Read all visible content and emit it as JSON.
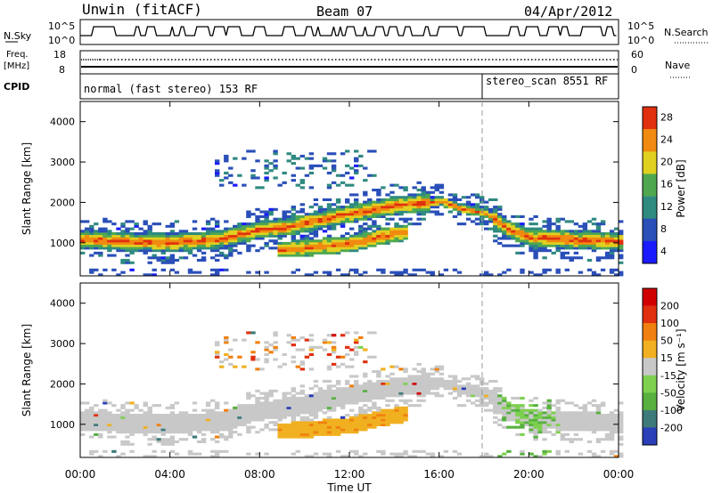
{
  "header": {
    "station": "Unwin (fitACF)",
    "beam": "Beam 07",
    "date": "04/Apr/2012"
  },
  "panels": {
    "nsky": {
      "label": "N.Sky",
      "ticks_left": [
        "10^5",
        "10^0"
      ],
      "ticks_right": [
        "10^5",
        "10^0"
      ],
      "right_label": "N.Search"
    },
    "freq": {
      "label": "Freq.",
      "unit": "[MHz]",
      "ticks_left": [
        "18",
        "8"
      ],
      "ticks_right": [
        "60",
        "0"
      ],
      "right_label": "Nave"
    },
    "cpid": {
      "label": "CPID",
      "mode1": "normal (fast stereo) 153 RF",
      "mode2": "stereo_scan 8551 RF",
      "mode_change_time": "18:00"
    }
  },
  "chart_data": [
    {
      "type": "heatmap",
      "title": "",
      "ylabel": "Slant Range [km]",
      "xlabel": "",
      "x_ticks": [
        "00:00",
        "04:00",
        "08:00",
        "12:00",
        "16:00",
        "20:00",
        "00:00"
      ],
      "y_ticks": [
        1000,
        2000,
        3000,
        4000
      ],
      "ylim": [
        180,
        4500
      ],
      "colorbar": {
        "label": "Power [dB]",
        "ticks": [
          4,
          8,
          12,
          16,
          20,
          24,
          28
        ],
        "colors": [
          "#1a1aff",
          "#2a4fb8",
          "#2f8a80",
          "#4fa850",
          "#e0d020",
          "#f08a10",
          "#e03010"
        ]
      },
      "bands": [
        {
          "name": "main",
          "x": [
            0.5,
            2,
            4,
            6,
            8,
            9,
            12,
            14,
            16,
            17,
            18,
            19,
            20,
            22,
            24
          ],
          "y": [
            1050,
            1000,
            980,
            1050,
            1300,
            1350,
            1700,
            1900,
            2000,
            1800,
            1700,
            1300,
            1100,
            1050,
            1000
          ]
        },
        {
          "name": "lower",
          "x": [
            8.8,
            10,
            12,
            13.5,
            14.5
          ],
          "y": [
            800,
            850,
            950,
            1150,
            1250
          ]
        }
      ]
    },
    {
      "type": "heatmap",
      "title": "",
      "ylabel": "Slant Range [km]",
      "xlabel": "Time UT",
      "x_ticks": [
        "00:00",
        "04:00",
        "08:00",
        "12:00",
        "16:00",
        "20:00",
        "00:00"
      ],
      "y_ticks": [
        1000,
        2000,
        3000,
        4000
      ],
      "ylim": [
        180,
        4500
      ],
      "colorbar": {
        "label": "Velocity [m s⁻¹]",
        "ticks": [
          "200",
          "100",
          "50",
          "15",
          "-15",
          "-50",
          "-100",
          "-200"
        ],
        "colors": [
          "#2a3fb8",
          "#3e7a7a",
          "#58b040",
          "#7ed050",
          "#c8c8c8",
          "#f0b020",
          "#f08010",
          "#e03010",
          "#d00000"
        ]
      }
    }
  ]
}
